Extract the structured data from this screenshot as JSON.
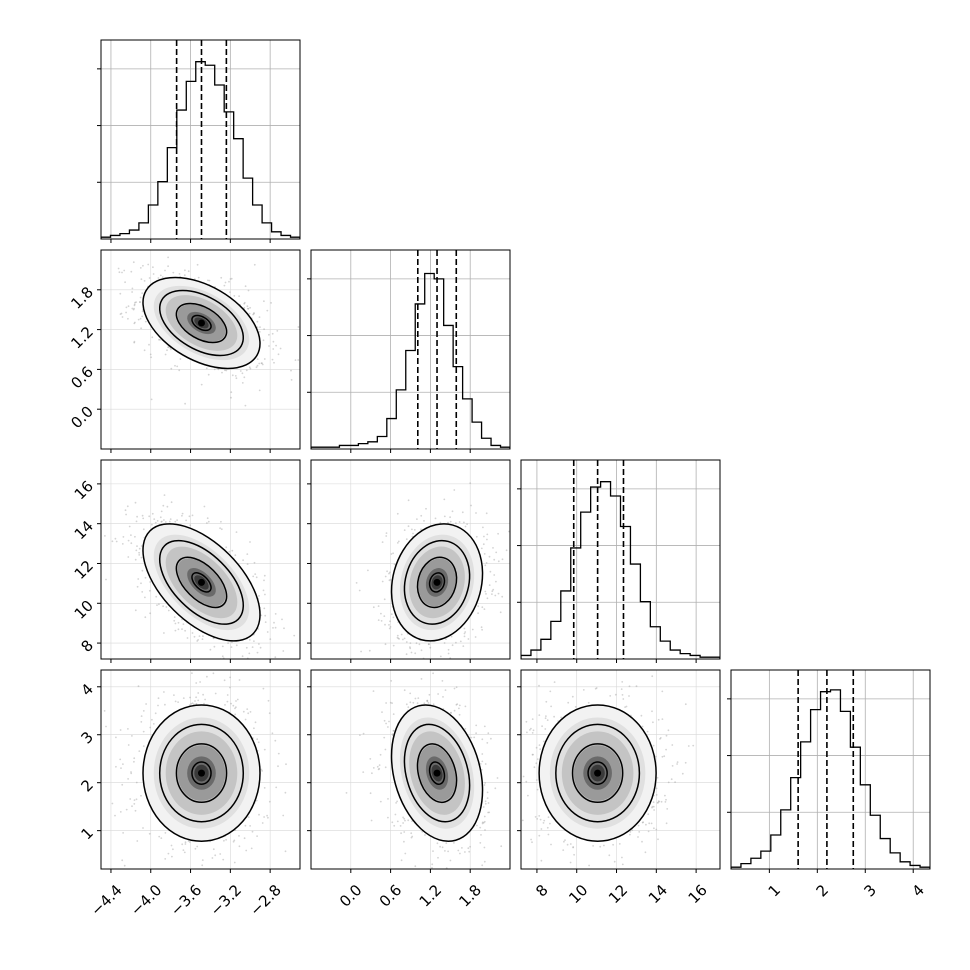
{
  "chart_data": {
    "type": "corner",
    "title": "",
    "params": [
      {
        "range": [
          -4.5,
          -2.5
        ],
        "ticks": [
          -4.4,
          -4.0,
          -3.6,
          -3.2,
          -2.8
        ],
        "tick_labels": [
          "−4.4",
          "−4.0",
          "−3.6",
          "−3.2",
          "−2.8"
        ],
        "quantiles": [
          -3.74,
          -3.49,
          -3.24
        ]
      },
      {
        "range": [
          -0.6,
          2.4
        ],
        "ticks": [
          0.0,
          0.6,
          1.2,
          1.8
        ],
        "tick_labels": [
          "0.0",
          "0.6",
          "1.2",
          "1.8"
        ],
        "quantiles": [
          1.01,
          1.3,
          1.59
        ]
      },
      {
        "range": [
          7.2,
          17.2
        ],
        "ticks": [
          8,
          10,
          12,
          14,
          16
        ],
        "tick_labels": [
          "8",
          "10",
          "12",
          "14",
          "16"
        ],
        "quantiles": [
          9.85,
          11.05,
          12.35
        ]
      },
      {
        "range": [
          0.2,
          4.35
        ],
        "ticks": [
          1,
          2,
          3,
          4
        ],
        "tick_labels": [
          "1",
          "2",
          "3",
          "4"
        ],
        "quantiles": [
          1.6,
          2.2,
          2.75
        ]
      }
    ],
    "histograms": [
      {
        "counts": [
          0.01,
          0.02,
          0.03,
          0.05,
          0.09,
          0.19,
          0.32,
          0.51,
          0.72,
          0.88,
          0.99,
          0.97,
          0.86,
          0.71,
          0.56,
          0.34,
          0.19,
          0.09,
          0.04,
          0.02,
          0.01
        ]
      },
      {
        "counts": [
          0.01,
          0.01,
          0.01,
          0.02,
          0.02,
          0.03,
          0.04,
          0.07,
          0.17,
          0.33,
          0.55,
          0.81,
          0.98,
          0.95,
          0.69,
          0.46,
          0.28,
          0.15,
          0.06,
          0.02,
          0.01
        ]
      },
      {
        "counts": [
          0.02,
          0.05,
          0.11,
          0.21,
          0.38,
          0.62,
          0.82,
          0.96,
          0.99,
          0.91,
          0.74,
          0.53,
          0.32,
          0.18,
          0.1,
          0.05,
          0.03,
          0.02,
          0.01,
          0.01
        ]
      },
      {
        "counts": [
          0.01,
          0.03,
          0.06,
          0.1,
          0.19,
          0.33,
          0.51,
          0.71,
          0.89,
          0.99,
          1.0,
          0.88,
          0.68,
          0.47,
          0.3,
          0.17,
          0.09,
          0.04,
          0.02,
          0.01
        ]
      }
    ],
    "correlations": {
      "1-0": -0.45,
      "2-0": -0.55,
      "3-0": 0.0,
      "2-1": 0.15,
      "3-1": -0.25,
      "3-2": 0.0
    },
    "stds": [
      0.24,
      0.28,
      1.2,
      0.58
    ],
    "grid": true
  }
}
